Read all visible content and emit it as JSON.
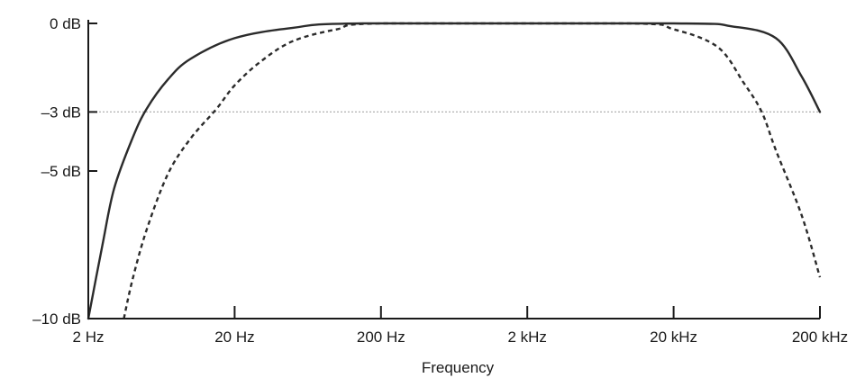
{
  "chart_data": {
    "type": "line",
    "title": "",
    "xlabel": "Frequency",
    "ylabel": "",
    "x_scale": "log",
    "xlim": [
      2,
      200000
    ],
    "ylim": [
      -10,
      0
    ],
    "x_ticks": [
      {
        "value": 2,
        "label": "2 Hz"
      },
      {
        "value": 20,
        "label": "20 Hz"
      },
      {
        "value": 200,
        "label": "200 Hz"
      },
      {
        "value": 2000,
        "label": "2 kHz"
      },
      {
        "value": 20000,
        "label": "20 kHz"
      },
      {
        "value": 200000,
        "label": "200 kHz"
      }
    ],
    "y_ticks": [
      {
        "value": 0,
        "label": "0 dB"
      },
      {
        "value": -3,
        "label": "–3 dB"
      },
      {
        "value": -5,
        "label": "–5 dB"
      },
      {
        "value": -10,
        "label": "–10 dB"
      }
    ],
    "reference_line": {
      "y": -3,
      "style": "dotted",
      "color": "#b0b0b0"
    },
    "grid": false,
    "legend": "none",
    "series": [
      {
        "style": "solid",
        "color": "#2b2b2b",
        "points": [
          {
            "x": 2,
            "y": -10
          },
          {
            "x": 2.5,
            "y": -7.5
          },
          {
            "x": 3,
            "y": -5.6
          },
          {
            "x": 4,
            "y": -3.9
          },
          {
            "x": 5,
            "y": -2.9
          },
          {
            "x": 7,
            "y": -1.9
          },
          {
            "x": 10,
            "y": -1.2
          },
          {
            "x": 20,
            "y": -0.5
          },
          {
            "x": 50,
            "y": -0.15
          },
          {
            "x": 150,
            "y": 0
          },
          {
            "x": 20000,
            "y": 0
          },
          {
            "x": 50000,
            "y": -0.1
          },
          {
            "x": 100000,
            "y": -0.5
          },
          {
            "x": 150000,
            "y": -1.8
          },
          {
            "x": 200000,
            "y": -3
          }
        ]
      },
      {
        "style": "dashed",
        "color": "#2b2b2b",
        "points": [
          {
            "x": 3.5,
            "y": -10
          },
          {
            "x": 4,
            "y": -8.7
          },
          {
            "x": 5,
            "y": -7.0
          },
          {
            "x": 7,
            "y": -5.1
          },
          {
            "x": 10,
            "y": -3.9
          },
          {
            "x": 15,
            "y": -2.9
          },
          {
            "x": 20,
            "y": -2.1
          },
          {
            "x": 30,
            "y": -1.3
          },
          {
            "x": 50,
            "y": -0.6
          },
          {
            "x": 100,
            "y": -0.2
          },
          {
            "x": 200,
            "y": 0
          },
          {
            "x": 10000,
            "y": 0
          },
          {
            "x": 20000,
            "y": -0.2
          },
          {
            "x": 40000,
            "y": -0.8
          },
          {
            "x": 60000,
            "y": -2
          },
          {
            "x": 80000,
            "y": -3
          },
          {
            "x": 100000,
            "y": -4.3
          },
          {
            "x": 150000,
            "y": -6.5
          },
          {
            "x": 200000,
            "y": -8.6
          }
        ]
      }
    ]
  }
}
